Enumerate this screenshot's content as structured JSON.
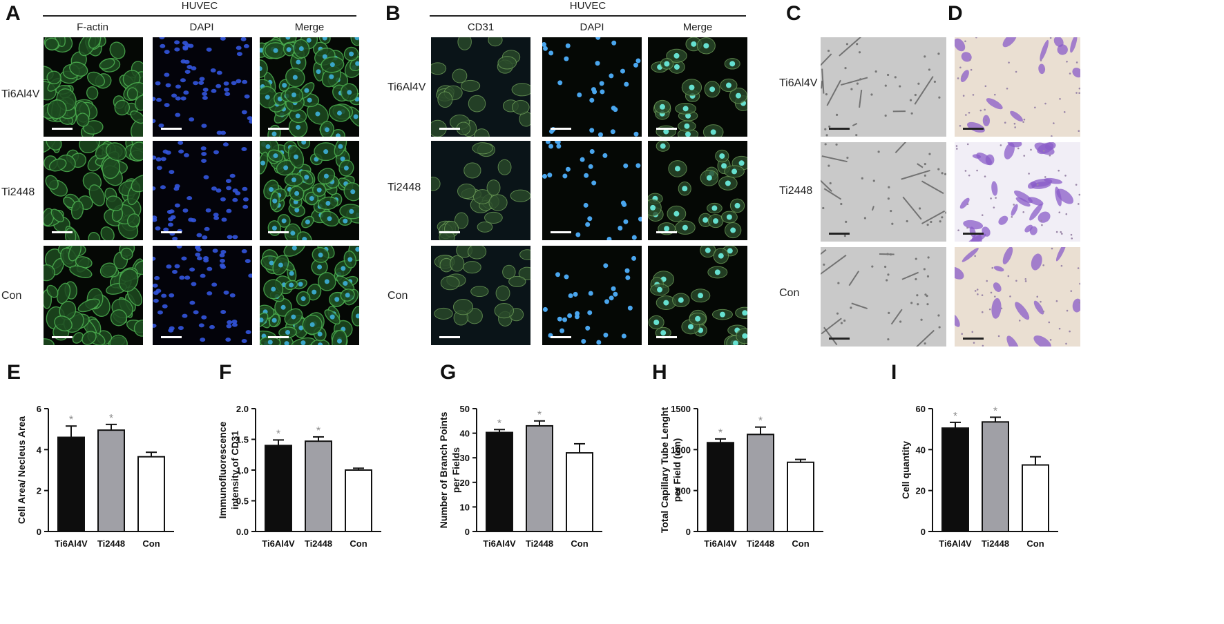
{
  "panels": {
    "A": {
      "letter": "A",
      "header": "HUVEC",
      "columns": [
        "F-actin",
        "DAPI",
        "Merge"
      ],
      "rows": [
        "Ti6Al4V",
        "Ti2448",
        "Con"
      ]
    },
    "B": {
      "letter": "B",
      "header": "HUVEC",
      "columns": [
        "CD31",
        "DAPI",
        "Merge"
      ],
      "rows": [
        "Ti6Al4V",
        "Ti2448",
        "Con"
      ]
    },
    "C": {
      "letter": "C",
      "rows": [
        "Ti6Al4V",
        "Ti2448",
        "Con"
      ]
    },
    "D": {
      "letter": "D"
    }
  },
  "colors": {
    "black_bar": "#0d0d0d",
    "grey_bar": "#a0a0a6",
    "white_bar": "#ffffff",
    "sig_star": "#8a8a8a",
    "factin": "#4caf50",
    "dapi": "#3355dd",
    "cd31": "#6fa05a",
    "cyan": "#66e0d0",
    "crystal_violet": "#8a5cc8"
  },
  "chart_data": [
    {
      "letter": "E",
      "type": "bar",
      "categories": [
        "Ti6Al4V",
        "Ti2448",
        "Con"
      ],
      "values": [
        4.6,
        4.95,
        3.65
      ],
      "errors": [
        0.55,
        0.28,
        0.22
      ],
      "significance": [
        "*",
        "*",
        ""
      ],
      "ylabel": "Cell Area/ Necleus Area",
      "ylim": [
        0,
        6
      ],
      "yticks": [
        0,
        2,
        4,
        6
      ],
      "ytick_labels": [
        "0",
        "2",
        "4",
        "6"
      ]
    },
    {
      "letter": "F",
      "type": "bar",
      "categories": [
        "Ti6Al4V",
        "Ti2448",
        "Con"
      ],
      "values": [
        1.4,
        1.47,
        1.0
      ],
      "errors": [
        0.09,
        0.07,
        0.03
      ],
      "significance": [
        "*",
        "*",
        ""
      ],
      "ylabel": [
        "Immunofluorescence",
        "intensity of CD31"
      ],
      "ylim": [
        0,
        2.0
      ],
      "yticks": [
        0,
        0.5,
        1.0,
        1.5,
        2.0
      ],
      "ytick_labels": [
        "0.0",
        "0.5",
        "1.0",
        "1.5",
        "2.0"
      ]
    },
    {
      "letter": "G",
      "type": "bar",
      "categories": [
        "Ti6Al4V",
        "Ti2448",
        "Con"
      ],
      "values": [
        40.3,
        43.0,
        32.0
      ],
      "errors": [
        1.2,
        2.0,
        3.7
      ],
      "significance": [
        "*",
        "*",
        ""
      ],
      "ylabel": [
        "Number of Branch Points",
        "per Fields"
      ],
      "ylim": [
        0,
        50
      ],
      "yticks": [
        0,
        10,
        20,
        30,
        40,
        50
      ],
      "ytick_labels": [
        "0",
        "10",
        "20",
        "30",
        "40",
        "50"
      ]
    },
    {
      "letter": "H",
      "type": "bar",
      "categories": [
        "Ti6Al4V",
        "Ti2448",
        "Con"
      ],
      "values": [
        1085,
        1185,
        845
      ],
      "errors": [
        45,
        90,
        35
      ],
      "significance": [
        "*",
        "*",
        ""
      ],
      "ylabel": [
        "Total Capillary Tube Lenght",
        "per Field (um)"
      ],
      "ylim": [
        0,
        1500
      ],
      "yticks": [
        0,
        500,
        1000,
        1500
      ],
      "ytick_labels": [
        "0",
        "500",
        "1000",
        "1500"
      ]
    },
    {
      "letter": "I",
      "type": "bar",
      "categories": [
        "Ti6Al4V",
        "Ti2448",
        "Con"
      ],
      "values": [
        50.5,
        53.5,
        32.5
      ],
      "errors": [
        2.8,
        2.3,
        4.0
      ],
      "significance": [
        "*",
        "*",
        ""
      ],
      "ylabel": "Cell quantity",
      "ylim": [
        0,
        60
      ],
      "yticks": [
        0,
        20,
        40,
        60
      ],
      "ytick_labels": [
        "0",
        "20",
        "40",
        "60"
      ]
    }
  ]
}
